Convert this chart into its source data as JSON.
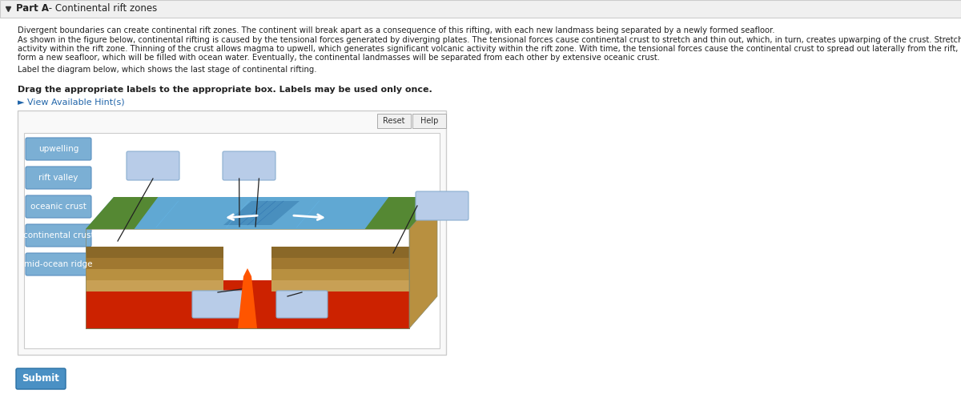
{
  "title_bold": "Part A",
  "title_rest": " - Continental rift zones",
  "bg_color": "#ffffff",
  "header_bg": "#f0f0f0",
  "header_border": "#cccccc",
  "panel_bg": "#ffffff",
  "panel_border": "#cccccc",
  "inner_panel_bg": "#f8f8f8",
  "inner_panel_border": "#dddddd",
  "label_bg": "#7bafd4",
  "label_border": "#5a8fbf",
  "label_text_color": "#ffffff",
  "empty_box_bg": "#b8cce8",
  "empty_box_border": "#8aaed0",
  "line_color": "#222222",
  "body_text1": "Divergent boundaries can create continental rift zones. The continent will break apart as a consequence of this rifting, with each new landmass being separated by a newly formed seafloor.",
  "body_text2_line1": "As shown in the figure below, continental rifting is caused by the tensional forces generated by diverging plates. The tensional forces cause continental crust to stretch and thin out, which, in turn, creates upwarping of the crust. Stretching and upwarping of the crust generate numerous normal faults and seismic",
  "body_text2_line2": "activity within the rift zone. Thinning of the crust allows magma to upwell, which generates significant volcanic activity within the rift zone. With time, the tensional forces cause the continental crust to spread out laterally from the rift, and the upwelling magma will generate numerous basaltic lavas that harden to",
  "body_text2_line3": "form a new seafloor, which will be filled with ocean water. Eventually, the continental landmasses will be separated from each other by extensive oceanic crust.",
  "label_instruction": "Label the diagram below, which shows the last stage of continental rifting.",
  "drag_text": "Drag the appropriate labels to the appropriate box. Labels may be used only once.",
  "hint_text": "► View Available Hint(s)",
  "labels": [
    "upwelling",
    "rift valley",
    "oceanic crust",
    "continental crust",
    "mid-ocean ridge"
  ],
  "buttons": [
    "Reset",
    "Help"
  ],
  "submit_text": "Submit",
  "submit_bg": "#4a90c4",
  "submit_border": "#2a70a4",
  "link_color": "#2266aa"
}
